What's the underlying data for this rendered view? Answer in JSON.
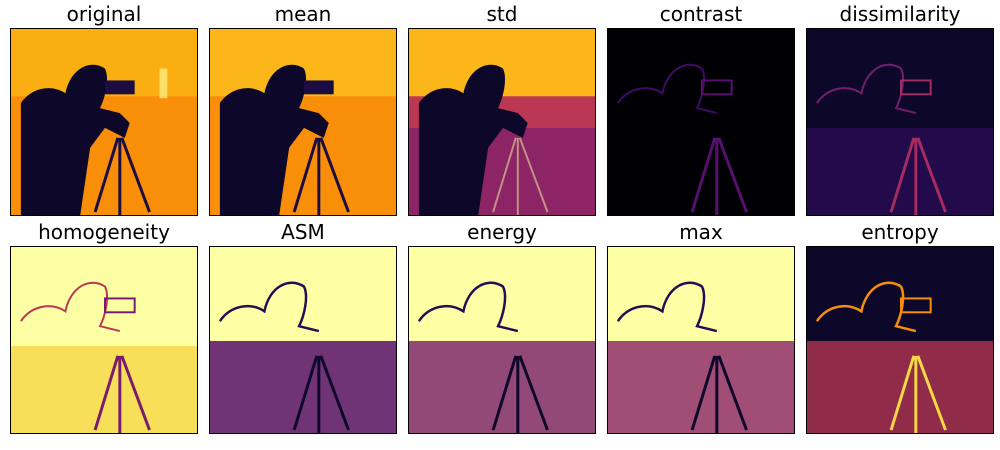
{
  "panels": [
    {
      "title": "original",
      "id": "original"
    },
    {
      "title": "mean",
      "id": "mean"
    },
    {
      "title": "std",
      "id": "std"
    },
    {
      "title": "contrast",
      "id": "contrast"
    },
    {
      "title": "dissimilarity",
      "id": "dissimilarity"
    },
    {
      "title": "homogeneity",
      "id": "homogeneity"
    },
    {
      "title": "ASM",
      "id": "asm"
    },
    {
      "title": "energy",
      "id": "energy"
    },
    {
      "title": "max",
      "id": "max"
    },
    {
      "title": "entropy",
      "id": "entropy"
    }
  ],
  "colors": {
    "inferno_dark": "#0d0829",
    "inferno_purple": "#57106e",
    "inferno_red": "#bc3754",
    "inferno_orange": "#f98e09",
    "inferno_yellow": "#fcffa4"
  }
}
